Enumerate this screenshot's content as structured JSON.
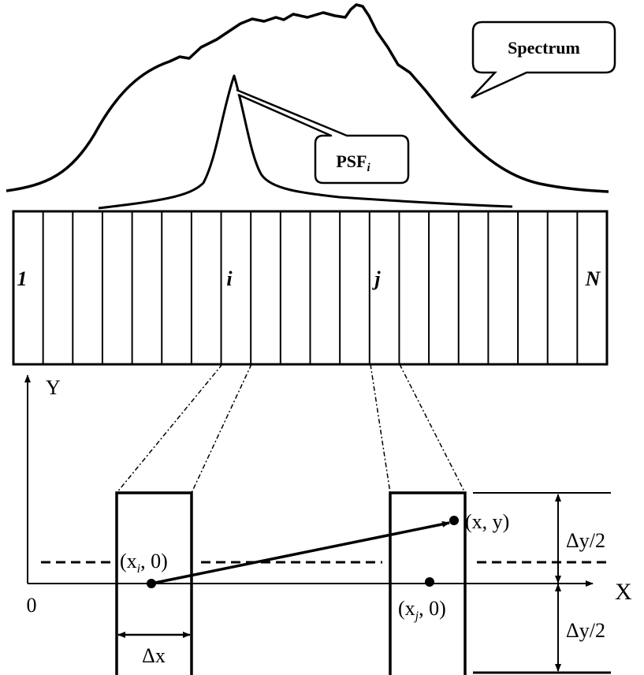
{
  "callouts": {
    "spectrum": "Spectrum",
    "psf": "PSF",
    "psf_sub": "i"
  },
  "strips": {
    "count": 20,
    "labels": {
      "first": "1",
      "i": "i",
      "j": "j",
      "last": "N"
    }
  },
  "axes": {
    "x": "X",
    "y": "Y",
    "origin": "0"
  },
  "points": {
    "xi": "(x",
    "xi_sub": "i",
    "xi_rest": ", 0)",
    "xj": "(x",
    "xj_sub": "j",
    "xj_rest": ", 0)",
    "xy": "(x, y)"
  },
  "dimensions": {
    "dx": "Δx",
    "dy_top": "Δy/2",
    "dy_bottom": "Δy/2"
  }
}
